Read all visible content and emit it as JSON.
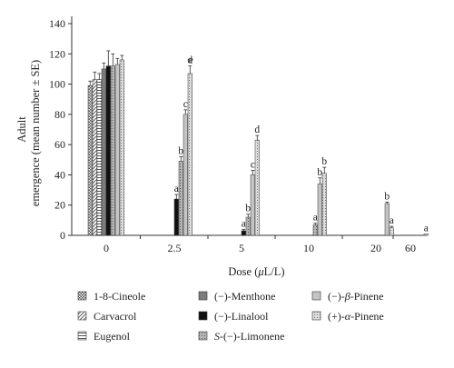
{
  "chart_data": {
    "type": "bar",
    "xlabel_parts": [
      "Dose (",
      "μ",
      "L/L)"
    ],
    "ylabel_line1": "Adult",
    "ylabel_line2": "emergence (mean number ± SE)",
    "ylim": [
      0,
      140
    ],
    "yticks": [
      "0",
      "20",
      "40",
      "60",
      "80",
      "100",
      "120",
      "140"
    ],
    "categories": [
      "0",
      "2.5",
      "5",
      "10",
      "20",
      "60"
    ],
    "grid": false,
    "legend_position": "bottom",
    "series": [
      {
        "name_parts": [
          {
            "t": "1-8-Cineole",
            "i": false
          }
        ],
        "pattern": "checker",
        "values": [
          99,
          0,
          0,
          0,
          0,
          0
        ],
        "errors": [
          3,
          0,
          0,
          0,
          0,
          0
        ]
      },
      {
        "name_parts": [
          {
            "t": "Carvacrol",
            "i": false
          }
        ],
        "pattern": "diagonal",
        "values": [
          103,
          0,
          0,
          0,
          0,
          0
        ],
        "errors": [
          5,
          0,
          0,
          0,
          0,
          0
        ]
      },
      {
        "name_parts": [
          {
            "t": "Eugenol",
            "i": false
          }
        ],
        "pattern": "hstripe",
        "values": [
          103,
          0,
          0,
          0,
          0,
          0
        ],
        "errors": [
          4,
          0,
          0,
          0,
          0,
          0
        ]
      },
      {
        "name_parts": [
          {
            "t": "(−)-Menthone",
            "i": false
          }
        ],
        "pattern": "gray",
        "values": [
          110,
          0,
          0,
          0,
          0,
          0
        ],
        "errors": [
          4,
          0,
          0,
          0,
          0,
          0
        ]
      },
      {
        "name_parts": [
          {
            "t": "(−)-Linalool",
            "i": false
          }
        ],
        "pattern": "black",
        "values": [
          112,
          24,
          3,
          0,
          0,
          0
        ],
        "errors": [
          10,
          3,
          1,
          0,
          0,
          0
        ]
      },
      {
        "name_parts": [
          {
            "t": "S",
            "i": true
          },
          {
            "t": "-(−)-Limonene",
            "i": false
          }
        ],
        "pattern": "dotgray",
        "values": [
          112,
          49,
          12,
          7,
          0,
          0
        ],
        "errors": [
          8,
          3,
          2,
          1,
          0,
          0
        ]
      },
      {
        "name_parts": [
          {
            "t": "(−)-",
            "i": false
          },
          {
            "t": "β",
            "i": true
          },
          {
            "t": "-Pinene",
            "i": false
          }
        ],
        "pattern": "lightgray",
        "values": [
          113,
          80,
          40,
          34,
          21,
          0
        ],
        "errors": [
          4,
          3,
          3,
          4,
          1,
          0
        ]
      },
      {
        "name_parts": [
          {
            "t": "(+)-",
            "i": false
          },
          {
            "t": "α",
            "i": true
          },
          {
            "t": "-Pinene",
            "i": false
          }
        ],
        "pattern": "dotlight",
        "values": [
          116,
          107,
          63,
          41,
          5,
          1
        ],
        "errors": [
          3,
          5,
          3,
          4,
          1,
          0
        ]
      }
    ],
    "annotations": [
      {
        "series": 4,
        "category": 1,
        "text": "a"
      },
      {
        "series": 5,
        "category": 1,
        "text": "b"
      },
      {
        "series": 6,
        "category": 1,
        "text": "c"
      },
      {
        "series": 7,
        "category": 1,
        "text": "d"
      },
      {
        "series": 7,
        "category": 1,
        "text": "e",
        "offset_series": 8
      },
      {
        "series": 4,
        "category": 2,
        "text": "a"
      },
      {
        "series": 5,
        "category": 2,
        "text": "b"
      },
      {
        "series": 6,
        "category": 2,
        "text": "c"
      },
      {
        "series": 7,
        "category": 2,
        "text": "d"
      },
      {
        "series": 5,
        "category": 3,
        "text": "a"
      },
      {
        "series": 6,
        "category": 3,
        "text": "b"
      },
      {
        "series": 7,
        "category": 3,
        "text": "b"
      },
      {
        "series": 6,
        "category": 4,
        "text": "b"
      },
      {
        "series": 7,
        "category": 4,
        "text": "a"
      },
      {
        "series": 7,
        "category": 5,
        "text": "a"
      }
    ]
  }
}
